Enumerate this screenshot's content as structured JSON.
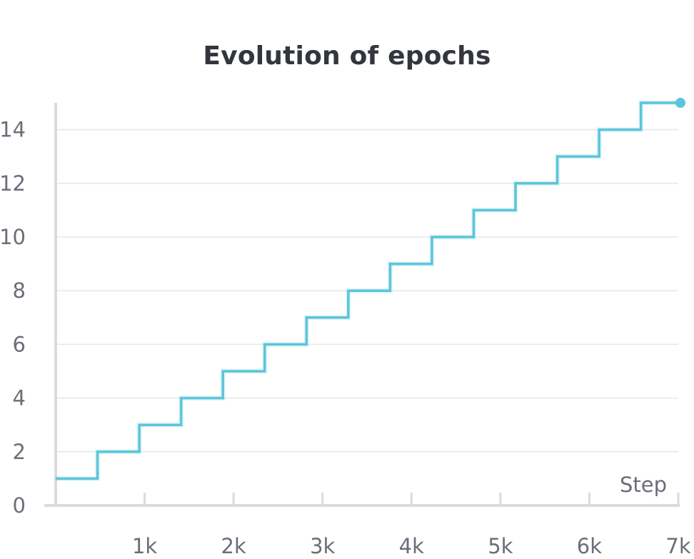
{
  "chart_data": {
    "type": "line",
    "line_shape": "step",
    "title": "Evolution of epochs",
    "xlabel": "Step",
    "ylabel": "",
    "xlim": [
      0,
      7000
    ],
    "ylim": [
      0,
      15
    ],
    "x_ticks": [
      {
        "value": 1000,
        "label": "1k"
      },
      {
        "value": 2000,
        "label": "2k"
      },
      {
        "value": 3000,
        "label": "3k"
      },
      {
        "value": 4000,
        "label": "4k"
      },
      {
        "value": 5000,
        "label": "5k"
      },
      {
        "value": 6000,
        "label": "6k"
      },
      {
        "value": 7000,
        "label": "7k"
      }
    ],
    "y_ticks": [
      {
        "value": 0,
        "label": "0"
      },
      {
        "value": 2,
        "label": "2"
      },
      {
        "value": 4,
        "label": "4"
      },
      {
        "value": 6,
        "label": "6"
      },
      {
        "value": 8,
        "label": "8"
      },
      {
        "value": 10,
        "label": "10"
      },
      {
        "value": 12,
        "label": "12"
      },
      {
        "value": 14,
        "label": "14"
      }
    ],
    "grid": {
      "horizontal": true,
      "vertical": false
    },
    "series": [
      {
        "color": "#5bc5db",
        "x": [
          0,
          470,
          940,
          1410,
          1880,
          2350,
          2820,
          3290,
          3760,
          4230,
          4700,
          5170,
          5640,
          6110,
          6580,
          7000
        ],
        "y": [
          1,
          2,
          3,
          4,
          5,
          6,
          7,
          8,
          9,
          10,
          11,
          12,
          13,
          14,
          15,
          15
        ]
      }
    ],
    "end_marker": {
      "x": 7000,
      "y": 15
    }
  }
}
